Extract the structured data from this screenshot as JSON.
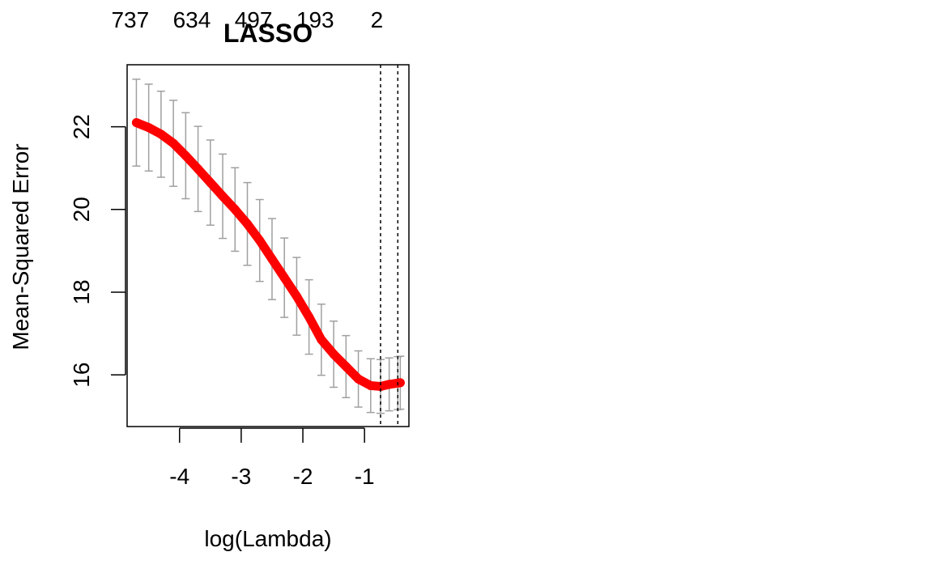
{
  "chart_data": {
    "type": "line",
    "title": "LASSO",
    "xlabel": "log(Lambda)",
    "ylabel": "Mean-Squared Error",
    "xlim": [
      -4.85,
      -0.28
    ],
    "ylim": [
      14.75,
      23.5
    ],
    "x_ticks": [
      -4,
      -3,
      -2,
      -1
    ],
    "y_ticks": [
      16,
      18,
      20,
      22
    ],
    "top_axis_labels": [
      {
        "x": -4.8,
        "label": "737"
      },
      {
        "x": -3.8,
        "label": "634"
      },
      {
        "x": -2.8,
        "label": "497"
      },
      {
        "x": -1.8,
        "label": "193"
      },
      {
        "x": -0.8,
        "label": "2"
      }
    ],
    "vlines": [
      -0.74,
      -0.46
    ],
    "grid": false,
    "series": [
      {
        "color": "#ff0000",
        "error_bar_color": "#a0a0a0",
        "points": [
          {
            "x": -4.7,
            "y": 22.1,
            "se": 1.05
          },
          {
            "x": -4.5,
            "y": 21.98,
            "se": 1.05
          },
          {
            "x": -4.3,
            "y": 21.82,
            "se": 1.04
          },
          {
            "x": -4.1,
            "y": 21.6,
            "se": 1.04
          },
          {
            "x": -3.9,
            "y": 21.3,
            "se": 1.04
          },
          {
            "x": -3.7,
            "y": 20.98,
            "se": 1.03
          },
          {
            "x": -3.5,
            "y": 20.65,
            "se": 1.03
          },
          {
            "x": -3.3,
            "y": 20.32,
            "se": 1.02
          },
          {
            "x": -3.1,
            "y": 20.0,
            "se": 1.01
          },
          {
            "x": -2.9,
            "y": 19.65,
            "se": 1.0
          },
          {
            "x": -2.7,
            "y": 19.25,
            "se": 0.99
          },
          {
            "x": -2.5,
            "y": 18.8,
            "se": 0.98
          },
          {
            "x": -2.3,
            "y": 18.35,
            "se": 0.96
          },
          {
            "x": -2.1,
            "y": 17.9,
            "se": 0.94
          },
          {
            "x": -1.9,
            "y": 17.4,
            "se": 0.9
          },
          {
            "x": -1.7,
            "y": 16.85,
            "se": 0.86
          },
          {
            "x": -1.5,
            "y": 16.5,
            "se": 0.8
          },
          {
            "x": -1.3,
            "y": 16.2,
            "se": 0.75
          },
          {
            "x": -1.1,
            "y": 15.9,
            "se": 0.68
          },
          {
            "x": -0.9,
            "y": 15.74,
            "se": 0.65
          },
          {
            "x": -0.74,
            "y": 15.72,
            "se": 0.65
          },
          {
            "x": -0.6,
            "y": 15.77,
            "se": 0.64
          },
          {
            "x": -0.46,
            "y": 15.8,
            "se": 0.64
          },
          {
            "x": -0.42,
            "y": 15.81,
            "se": 0.64
          }
        ]
      }
    ]
  }
}
